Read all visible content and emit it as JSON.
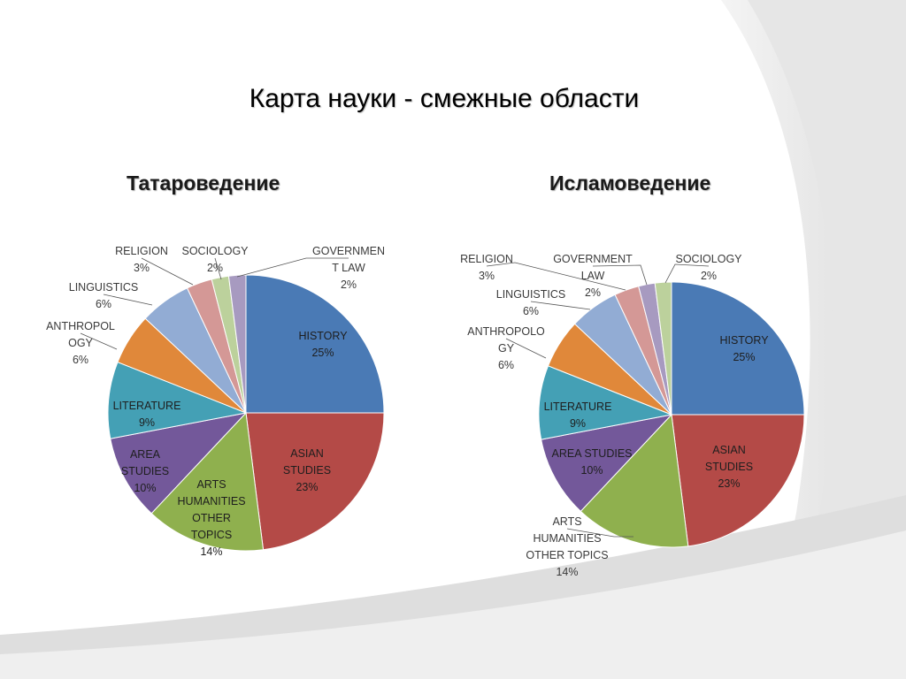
{
  "title": "Карта науки - смежные области",
  "colors": {
    "HISTORY": "#4a7ab5",
    "ASIAN STUDIES": "#b44a47",
    "ARTS HUMANITIES OTHER TOPICS": "#8fb04e",
    "AREA STUDIES": "#73589a",
    "LITERATURE": "#44a0b5",
    "ANTHROPOLOGY": "#e0883a",
    "LINGUISTICS": "#92acd4",
    "RELIGION": "#d49896",
    "SOCIOLOGY": "#bcd19c",
    "GOVERNMENT LAW": "#a79ac0"
  },
  "chart_data": [
    {
      "type": "pie",
      "title": "Татароведение",
      "categories": [
        "HISTORY",
        "ASIAN STUDIES",
        "ARTS HUMANITIES OTHER TOPICS",
        "AREA STUDIES",
        "LITERATURE",
        "ANTHROPOLOGY",
        "LINGUISTICS",
        "RELIGION",
        "SOCIOLOGY",
        "GOVERNMENT LAW"
      ],
      "values": [
        25,
        23,
        14,
        10,
        9,
        6,
        6,
        3,
        2,
        2
      ],
      "labels": [
        {
          "lines": [
            "HISTORY",
            "25%"
          ]
        },
        {
          "lines": [
            "ASIAN",
            "STUDIES",
            "23%"
          ]
        },
        {
          "lines": [
            "ARTS",
            "HUMANITIES",
            "OTHER",
            "TOPICS",
            "14%"
          ]
        },
        {
          "lines": [
            "AREA",
            "STUDIES",
            "10%"
          ]
        },
        {
          "lines": [
            "LITERATURE",
            "9%"
          ]
        },
        {
          "lines": [
            "ANTHROPOL",
            "OGY",
            "6%"
          ]
        },
        {
          "lines": [
            "LINGUISTICS",
            "6%"
          ]
        },
        {
          "lines": [
            "RELIGION",
            "3%"
          ]
        },
        {
          "lines": [
            "SOCIOLOGY",
            "2%"
          ]
        },
        {
          "lines": [
            "GOVERNMEN",
            "T LAW",
            "2%"
          ]
        }
      ]
    },
    {
      "type": "pie",
      "title": "Исламоведение",
      "categories": [
        "HISTORY",
        "ASIAN STUDIES",
        "ARTS HUMANITIES OTHER TOPICS",
        "AREA STUDIES",
        "LITERATURE",
        "ANTHROPOLOGY",
        "LINGUISTICS",
        "RELIGION",
        "GOVERNMENT LAW",
        "SOCIOLOGY"
      ],
      "values": [
        25,
        23,
        14,
        10,
        9,
        6,
        6,
        3,
        2,
        2
      ],
      "labels": [
        {
          "lines": [
            "HISTORY",
            "25%"
          ]
        },
        {
          "lines": [
            "ASIAN",
            "STUDIES",
            "23%"
          ]
        },
        {
          "lines": [
            "ARTS",
            "HUMANITIES",
            "OTHER TOPICS",
            "14%"
          ]
        },
        {
          "lines": [
            "AREA STUDIES",
            "10%"
          ]
        },
        {
          "lines": [
            "LITERATURE",
            "9%"
          ]
        },
        {
          "lines": [
            "ANTHROPOLO",
            "GY",
            "6%"
          ]
        },
        {
          "lines": [
            "LINGUISTICS",
            "6%"
          ]
        },
        {
          "lines": [
            "RELIGION",
            "3%"
          ]
        },
        {
          "lines": [
            "GOVERNMENT",
            "LAW",
            "2%"
          ]
        },
        {
          "lines": [
            "SOCIOLOGY",
            "2%"
          ]
        }
      ]
    }
  ]
}
